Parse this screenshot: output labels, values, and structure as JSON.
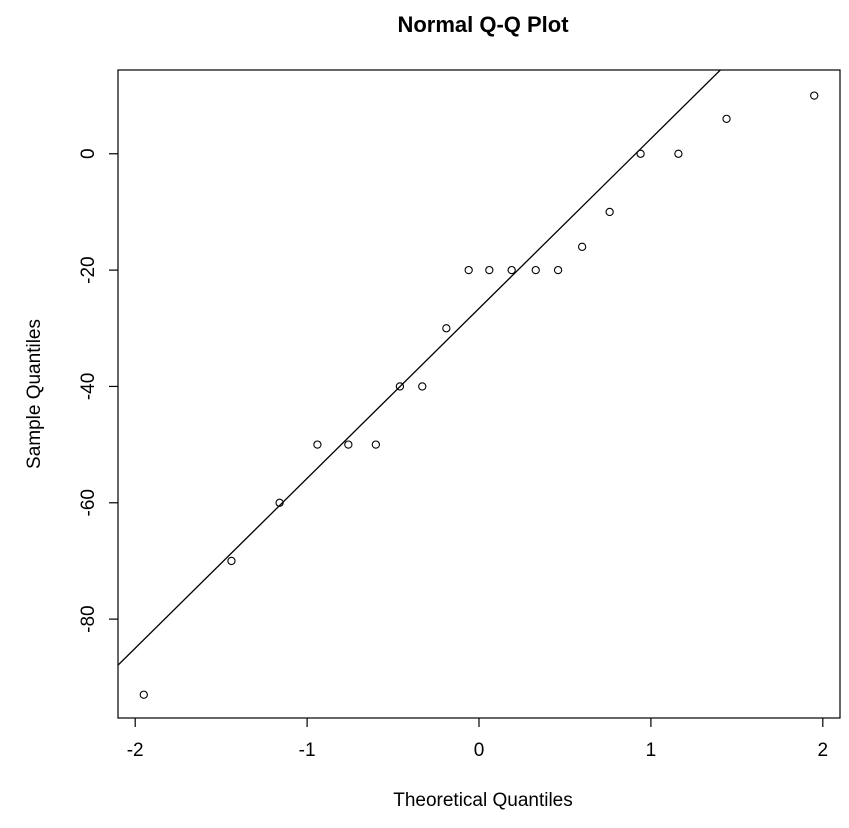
{
  "chart_data": {
    "type": "scatter",
    "title": "Normal Q-Q Plot",
    "xlabel": "Theoretical Quantiles",
    "ylabel": "Sample Quantiles",
    "xlim": [
      -2.1,
      2.1
    ],
    "ylim": [
      -97,
      14.4
    ],
    "grid": false,
    "xticks": [
      -2,
      -1,
      0,
      1,
      2
    ],
    "xtick_labels": [
      "-2",
      "-1",
      "0",
      "1",
      "2"
    ],
    "yticks": [
      -80,
      -60,
      -40,
      -20,
      0
    ],
    "ytick_labels": [
      "-80",
      "-60",
      "-40",
      "-20",
      "0"
    ],
    "points": [
      {
        "x": -1.95,
        "y": -93
      },
      {
        "x": -1.44,
        "y": -70
      },
      {
        "x": -1.16,
        "y": -60
      },
      {
        "x": -0.94,
        "y": -50
      },
      {
        "x": -0.76,
        "y": -50
      },
      {
        "x": -0.6,
        "y": -50
      },
      {
        "x": -0.46,
        "y": -40
      },
      {
        "x": -0.33,
        "y": -40
      },
      {
        "x": -0.19,
        "y": -30
      },
      {
        "x": -0.06,
        "y": -20
      },
      {
        "x": 0.06,
        "y": -20
      },
      {
        "x": 0.19,
        "y": -20
      },
      {
        "x": 0.33,
        "y": -20
      },
      {
        "x": 0.46,
        "y": -20
      },
      {
        "x": 0.6,
        "y": -16
      },
      {
        "x": 0.76,
        "y": -10
      },
      {
        "x": 0.94,
        "y": 0
      },
      {
        "x": 1.16,
        "y": 0
      },
      {
        "x": 1.44,
        "y": 6
      },
      {
        "x": 1.95,
        "y": 10
      }
    ],
    "reference_line": {
      "slope": 29.2,
      "intercept": -26.6
    }
  }
}
